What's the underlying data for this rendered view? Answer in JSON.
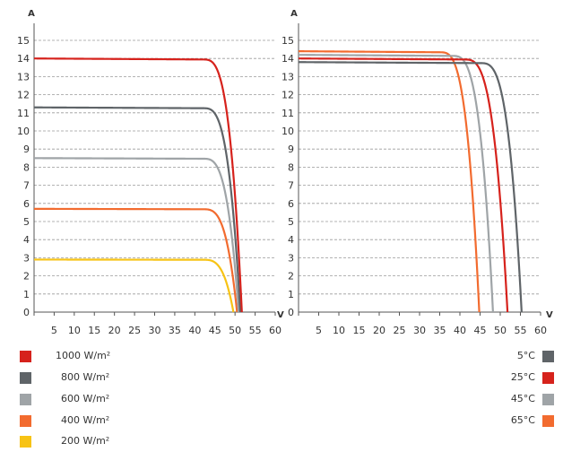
{
  "chart_data": [
    {
      "type": "line",
      "title": "",
      "ylabel": "A",
      "xlabel": "V",
      "xlim": [
        0,
        60
      ],
      "ylim": [
        0,
        15.5
      ],
      "x_ticks": [
        5,
        10,
        15,
        20,
        25,
        30,
        35,
        40,
        45,
        50,
        55,
        60
      ],
      "y_ticks": [
        0,
        1,
        2,
        3,
        4,
        5,
        6,
        7,
        8,
        9,
        10,
        11,
        12,
        13,
        14,
        15
      ],
      "grid": true,
      "legend_position": "bottom-left",
      "series": [
        {
          "name": "1000 W/m²",
          "color": "#d6221c",
          "isc": 14.0,
          "voc": 51.7,
          "knee": 42
        },
        {
          "name": "800 W/m²",
          "color": "#5f6468",
          "isc": 11.3,
          "voc": 51.3,
          "knee": 42
        },
        {
          "name": "600 W/m²",
          "color": "#9fa4a7",
          "isc": 8.5,
          "voc": 50.9,
          "knee": 42
        },
        {
          "name": "400 W/m²",
          "color": "#f26b2f",
          "isc": 5.7,
          "voc": 50.5,
          "knee": 42
        },
        {
          "name": "200 W/m²",
          "color": "#f7c315",
          "isc": 2.9,
          "voc": 49.6,
          "knee": 42
        }
      ]
    },
    {
      "type": "line",
      "title": "",
      "ylabel": "A",
      "xlabel": "V",
      "xlim": [
        0,
        60
      ],
      "ylim": [
        0,
        15.5
      ],
      "x_ticks": [
        5,
        10,
        15,
        20,
        25,
        30,
        35,
        40,
        45,
        50,
        55,
        60
      ],
      "y_ticks": [
        0,
        1,
        2,
        3,
        4,
        5,
        6,
        7,
        8,
        9,
        10,
        11,
        12,
        13,
        14,
        15
      ],
      "grid": true,
      "legend_position": "bottom-right",
      "series": [
        {
          "name": "5°C",
          "color": "#5f6468",
          "isc": 13.8,
          "voc": 55.3,
          "knee": 45
        },
        {
          "name": "25°C",
          "color": "#d6221c",
          "isc": 14.0,
          "voc": 51.8,
          "knee": 41
        },
        {
          "name": "45°C",
          "color": "#9fa4a7",
          "isc": 14.2,
          "voc": 48.2,
          "knee": 38
        },
        {
          "name": "65°C",
          "color": "#f26b2f",
          "isc": 14.4,
          "voc": 44.8,
          "knee": 35
        }
      ]
    }
  ]
}
